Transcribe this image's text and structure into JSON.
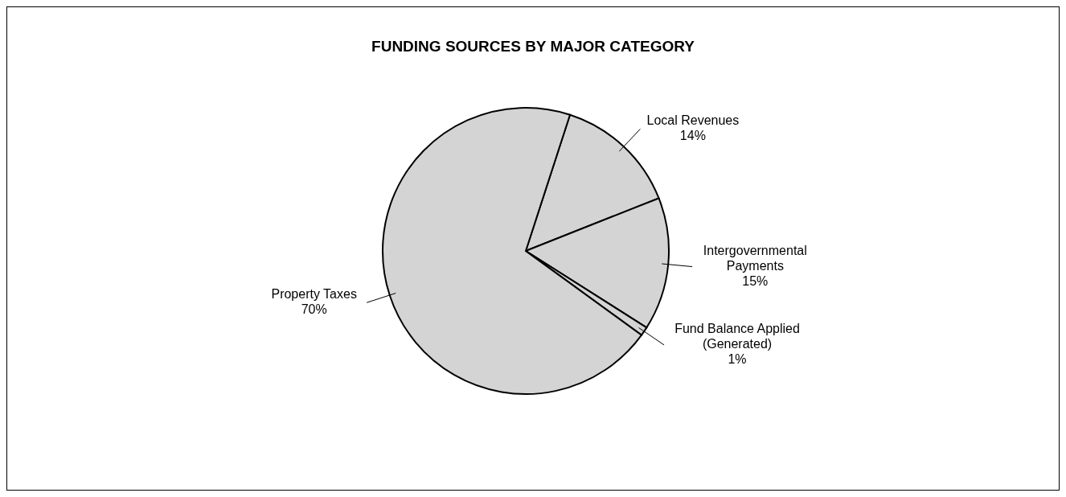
{
  "chart_data": {
    "type": "pie",
    "title": "FUNDING SOURCES BY MAJOR CATEGORY",
    "categories": [
      "Local Revenues",
      "Intergovernmental Payments",
      "Fund Balance Applied (Generated)",
      "Property Taxes"
    ],
    "values": [
      14,
      15,
      1,
      70
    ],
    "colors": [
      "#d4d4d4",
      "#d4d4d4",
      "#d4d4d4",
      "#d4d4d4"
    ],
    "value_labels": [
      "14%",
      "15%",
      "1%",
      "70%"
    ]
  }
}
